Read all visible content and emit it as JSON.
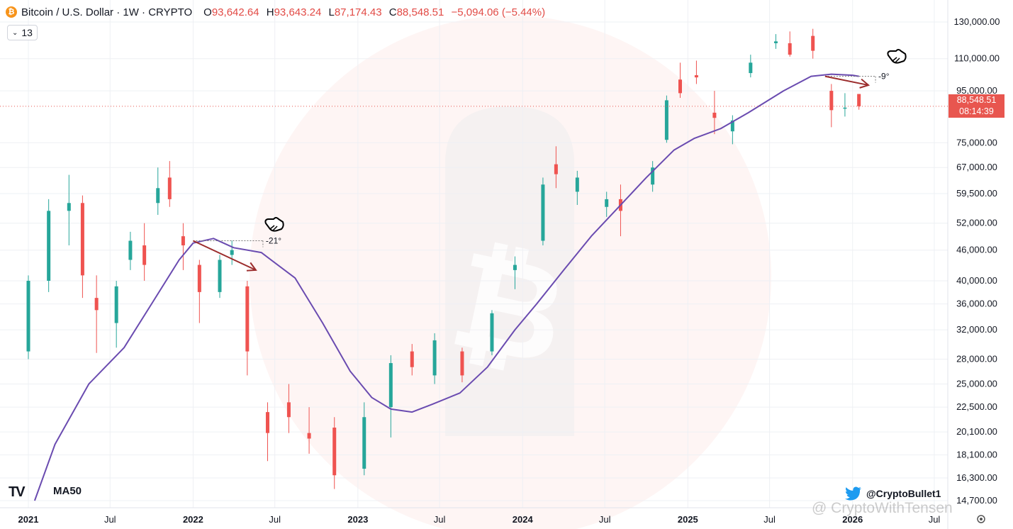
{
  "header": {
    "badge": "₿",
    "symbol_title": "Bitcoin / U.S. Dollar · 1W · CRYPTO",
    "open_key": "O",
    "open": "93,642.64",
    "high_key": "H",
    "high": "93,643.24",
    "low_key": "L",
    "low": "87,174.43",
    "close_key": "C",
    "close": "88,548.51",
    "change": "−5,094.06 (−5.44%)"
  },
  "indicator_toggle": {
    "chevron": "⌄",
    "count": "13"
  },
  "price_tag": {
    "price": "88,548.51",
    "countdown": "08:14:39"
  },
  "logo": "TV",
  "ma_label": "MA50",
  "social": {
    "icon": "twitter-bird-icon",
    "handle": "@CryptoBullet1"
  },
  "watermark_text": "@ CryptoWithTensen",
  "colors": {
    "up": "#26a69a",
    "down": "#ef5350",
    "ma": "#6a4bb0",
    "arrow": "#9b2c2c",
    "price_line": "#e8564f"
  },
  "chart_data": {
    "type": "candlestick",
    "title": "Bitcoin / U.S. Dollar · 1W · CRYPTO",
    "timeframe": "1W",
    "y_scale": "log",
    "ylim": [
      14700,
      140000
    ],
    "y_ticks": [
      "130,000.00",
      "110,000.00",
      "95,000.00",
      "75,000.00",
      "67,000.00",
      "59,500.00",
      "52,000.00",
      "46,000.00",
      "40,000.00",
      "36,000.00",
      "32,000.00",
      "28,000.00",
      "25,000.00",
      "22,500.00",
      "20,100.00",
      "18,100.00",
      "16,300.00",
      "14,700.00"
    ],
    "x_ticks": [
      "2021",
      "Jul",
      "2022",
      "Jul",
      "2023",
      "Jul",
      "2024",
      "Jul",
      "2025",
      "Jul",
      "2026",
      "Jul"
    ],
    "x_tick_dates": [
      "2021-01-01",
      "2021-07-01",
      "2022-01-01",
      "2022-07-01",
      "2023-01-01",
      "2023-07-01",
      "2024-01-01",
      "2024-07-01",
      "2025-01-01",
      "2025-07-01",
      "2026-01-01",
      "2026-07-01"
    ],
    "current_price": 88548.51,
    "ma50": {
      "name": "MA50",
      "dates": [
        "2021-01-15",
        "2021-03-01",
        "2021-05-15",
        "2021-08-01",
        "2021-10-01",
        "2021-12-01",
        "2022-01-01",
        "2022-02-15",
        "2022-04-01",
        "2022-06-01",
        "2022-08-15",
        "2022-10-15",
        "2022-12-15",
        "2023-02-01",
        "2023-03-15",
        "2023-05-01",
        "2023-06-15",
        "2023-08-15",
        "2023-10-15",
        "2023-12-15",
        "2024-02-01",
        "2024-04-01",
        "2024-06-01",
        "2024-08-01",
        "2024-10-01",
        "2024-12-01",
        "2025-01-15",
        "2025-03-15",
        "2025-05-15",
        "2025-08-01",
        "2025-10-01",
        "2025-11-15",
        "2026-01-01",
        "2026-01-15"
      ],
      "values": [
        14700,
        19000,
        25000,
        29500,
        36000,
        44000,
        47500,
        48500,
        46500,
        45500,
        40500,
        33000,
        26500,
        23500,
        22300,
        22000,
        22800,
        24000,
        27000,
        32000,
        36000,
        42000,
        49000,
        56000,
        64000,
        72500,
        76500,
        80000,
        86000,
        95000,
        101500,
        102500,
        102000,
        101500
      ]
    },
    "candles": [
      {
        "date": "2021-01-01",
        "open": 29000,
        "high": 41000,
        "low": 28000,
        "close": 40000
      },
      {
        "date": "2021-02-15",
        "open": 40000,
        "high": 58000,
        "low": 38000,
        "close": 55000
      },
      {
        "date": "2021-04-01",
        "open": 55000,
        "high": 64800,
        "low": 47000,
        "close": 57000
      },
      {
        "date": "2021-05-01",
        "open": 57000,
        "high": 59000,
        "low": 37000,
        "close": 41000
      },
      {
        "date": "2021-06-01",
        "open": 37000,
        "high": 41000,
        "low": 28800,
        "close": 35000
      },
      {
        "date": "2021-07-15",
        "open": 33000,
        "high": 40000,
        "low": 29500,
        "close": 39000
      },
      {
        "date": "2021-08-15",
        "open": 44000,
        "high": 50000,
        "low": 42000,
        "close": 48000
      },
      {
        "date": "2021-09-15",
        "open": 47000,
        "high": 52000,
        "low": 40000,
        "close": 43000
      },
      {
        "date": "2021-10-15",
        "open": 57000,
        "high": 67000,
        "low": 54000,
        "close": 61000
      },
      {
        "date": "2021-11-10",
        "open": 64000,
        "high": 69000,
        "low": 56000,
        "close": 58000
      },
      {
        "date": "2021-12-10",
        "open": 49000,
        "high": 52000,
        "low": 42000,
        "close": 47000
      },
      {
        "date": "2022-01-15",
        "open": 43000,
        "high": 44000,
        "low": 33000,
        "close": 38000
      },
      {
        "date": "2022-03-01",
        "open": 38000,
        "high": 45000,
        "low": 37000,
        "close": 44000
      },
      {
        "date": "2022-03-28",
        "open": 45000,
        "high": 48000,
        "low": 43000,
        "close": 46000
      },
      {
        "date": "2022-05-01",
        "open": 39000,
        "high": 40000,
        "low": 26000,
        "close": 29000
      },
      {
        "date": "2022-06-15",
        "open": 22000,
        "high": 23000,
        "low": 17600,
        "close": 20000
      },
      {
        "date": "2022-08-01",
        "open": 23000,
        "high": 25000,
        "low": 20000,
        "close": 21500
      },
      {
        "date": "2022-09-15",
        "open": 20000,
        "high": 22500,
        "low": 18200,
        "close": 19500
      },
      {
        "date": "2022-11-10",
        "open": 20500,
        "high": 21500,
        "low": 15500,
        "close": 16500
      },
      {
        "date": "2023-01-15",
        "open": 17000,
        "high": 23000,
        "low": 16500,
        "close": 21500
      },
      {
        "date": "2023-03-15",
        "open": 22500,
        "high": 28500,
        "low": 19600,
        "close": 27500
      },
      {
        "date": "2023-05-01",
        "open": 29000,
        "high": 30000,
        "low": 26000,
        "close": 27000
      },
      {
        "date": "2023-06-20",
        "open": 26000,
        "high": 31500,
        "low": 25000,
        "close": 30500
      },
      {
        "date": "2023-08-20",
        "open": 29000,
        "high": 29500,
        "low": 25200,
        "close": 26000
      },
      {
        "date": "2023-10-25",
        "open": 29000,
        "high": 35000,
        "low": 28500,
        "close": 34500
      },
      {
        "date": "2023-12-15",
        "open": 42000,
        "high": 44700,
        "low": 38500,
        "close": 43000
      },
      {
        "date": "2024-02-15",
        "open": 48000,
        "high": 64000,
        "low": 47000,
        "close": 62000
      },
      {
        "date": "2024-03-15",
        "open": 68000,
        "high": 73800,
        "low": 61000,
        "close": 65000
      },
      {
        "date": "2024-05-01",
        "open": 60000,
        "high": 66000,
        "low": 56500,
        "close": 64000
      },
      {
        "date": "2024-07-05",
        "open": 56000,
        "high": 60000,
        "low": 53500,
        "close": 58000
      },
      {
        "date": "2024-08-05",
        "open": 58000,
        "high": 62000,
        "low": 49000,
        "close": 55000
      },
      {
        "date": "2024-10-15",
        "open": 62000,
        "high": 69000,
        "low": 60000,
        "close": 67000
      },
      {
        "date": "2024-11-15",
        "open": 76000,
        "high": 93000,
        "low": 75000,
        "close": 91000
      },
      {
        "date": "2024-12-15",
        "open": 100000,
        "high": 108000,
        "low": 92000,
        "close": 94000
      },
      {
        "date": "2025-01-20",
        "open": 102000,
        "high": 109000,
        "low": 98000,
        "close": 101000
      },
      {
        "date": "2025-03-01",
        "open": 86000,
        "high": 95000,
        "low": 78000,
        "close": 84000
      },
      {
        "date": "2025-04-10",
        "open": 79000,
        "high": 85000,
        "low": 74500,
        "close": 83000
      },
      {
        "date": "2025-05-20",
        "open": 103000,
        "high": 112000,
        "low": 101000,
        "close": 108000
      },
      {
        "date": "2025-07-15",
        "open": 118000,
        "high": 123000,
        "low": 115000,
        "close": 119000
      },
      {
        "date": "2025-08-15",
        "open": 118000,
        "high": 124500,
        "low": 111000,
        "close": 112000
      },
      {
        "date": "2025-10-05",
        "open": 122000,
        "high": 126000,
        "low": 110000,
        "close": 114000
      },
      {
        "date": "2025-11-15",
        "open": 95000,
        "high": 98000,
        "low": 80500,
        "close": 87000
      },
      {
        "date": "2025-12-15",
        "open": 88000,
        "high": 94000,
        "low": 84500,
        "close": 88000
      },
      {
        "date": "2026-01-15",
        "open": 93642.64,
        "high": 93643.24,
        "low": 87174.43,
        "close": 88548.51
      }
    ],
    "annotations": [
      {
        "type": "trend-angle",
        "text": "-21°",
        "start_date": "2022-01-01",
        "start_value": 48000,
        "end_date": "2022-05-20",
        "end_value": 42000
      },
      {
        "type": "trend-angle",
        "text": "-9°",
        "start_date": "2025-11-01",
        "start_value": 101500,
        "end_date": "2026-02-05",
        "end_value": 97500
      }
    ]
  }
}
